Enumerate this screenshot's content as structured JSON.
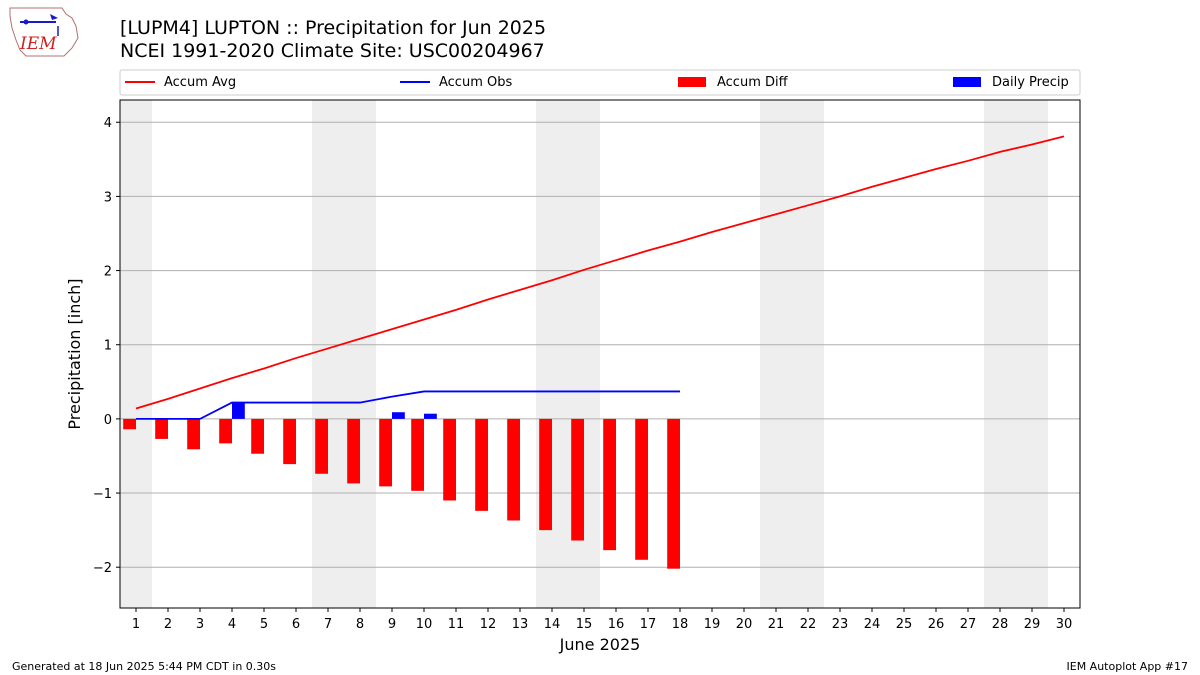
{
  "header": {
    "title": "[LUPM4] LUPTON :: Precipitation for Jun 2025",
    "subtitle": "NCEI 1991-2020 Climate Site: USC00204967",
    "logo_text": "IEM"
  },
  "footer": {
    "left": "Generated at 18 Jun 2025 5:44 PM CDT in 0.30s",
    "right": "IEM Autoplot App #17"
  },
  "colors": {
    "avg": "#ff0000",
    "obs": "#0000ff",
    "diff": "#ff0000",
    "daily": "#0000ff",
    "weekend_band": "#eeeeee",
    "grid": "#b0b0b0"
  },
  "chart_data": {
    "type": "bar",
    "xlabel": "June 2025",
    "ylabel": "Precipitation [inch]",
    "xlim": [
      0.5,
      30.5
    ],
    "ylim": [
      -2.55,
      4.3
    ],
    "grid": "horizontal",
    "legend_position": "top",
    "x_ticks": [
      1,
      2,
      3,
      4,
      5,
      6,
      7,
      8,
      9,
      10,
      11,
      12,
      13,
      14,
      15,
      16,
      17,
      18,
      19,
      20,
      21,
      22,
      23,
      24,
      25,
      26,
      27,
      28,
      29,
      30
    ],
    "y_ticks": [
      -2,
      -1,
      0,
      1,
      2,
      3,
      4
    ],
    "y_tick_labels": [
      "−2",
      "−1",
      "0",
      "1",
      "2",
      "3",
      "4"
    ],
    "weekend_bands": [
      [
        0.5,
        1.5
      ],
      [
        6.5,
        8.5
      ],
      [
        13.5,
        15.5
      ],
      [
        20.5,
        22.5
      ],
      [
        27.5,
        29.5
      ]
    ],
    "legend": [
      "Accum Avg",
      "Accum Obs",
      "Accum Diff",
      "Daily Precip"
    ],
    "series": [
      {
        "name": "Accum Avg",
        "kind": "line",
        "x": [
          1,
          2,
          3,
          4,
          5,
          6,
          7,
          8,
          9,
          10,
          11,
          12,
          13,
          14,
          15,
          16,
          17,
          18,
          19,
          20,
          21,
          22,
          23,
          24,
          25,
          26,
          27,
          28,
          29,
          30
        ],
        "values": [
          0.14,
          0.27,
          0.41,
          0.55,
          0.68,
          0.82,
          0.95,
          1.08,
          1.21,
          1.34,
          1.47,
          1.61,
          1.74,
          1.87,
          2.01,
          2.14,
          2.27,
          2.39,
          2.52,
          2.64,
          2.76,
          2.88,
          3.0,
          3.13,
          3.25,
          3.37,
          3.48,
          3.6,
          3.7,
          3.81
        ]
      },
      {
        "name": "Accum Obs",
        "kind": "line",
        "x": [
          1,
          2,
          3,
          4,
          5,
          6,
          7,
          8,
          9,
          10,
          11,
          12,
          13,
          14,
          15,
          16,
          17,
          18
        ],
        "values": [
          0.0,
          0.0,
          0.0,
          0.22,
          0.22,
          0.22,
          0.22,
          0.22,
          0.3,
          0.37,
          0.37,
          0.37,
          0.37,
          0.37,
          0.37,
          0.37,
          0.37,
          0.37
        ]
      },
      {
        "name": "Accum Diff",
        "kind": "bar",
        "offset": -0.2,
        "x": [
          1,
          2,
          3,
          4,
          5,
          6,
          7,
          8,
          9,
          10,
          11,
          12,
          13,
          14,
          15,
          16,
          17,
          18
        ],
        "values": [
          -0.14,
          -0.27,
          -0.41,
          -0.33,
          -0.47,
          -0.61,
          -0.74,
          -0.87,
          -0.91,
          -0.97,
          -1.1,
          -1.24,
          -1.37,
          -1.5,
          -1.64,
          -1.77,
          -1.9,
          -2.02
        ]
      },
      {
        "name": "Daily Precip",
        "kind": "bar",
        "offset": 0.2,
        "x": [
          4,
          9,
          10
        ],
        "values": [
          0.22,
          0.09,
          0.07
        ]
      }
    ]
  }
}
